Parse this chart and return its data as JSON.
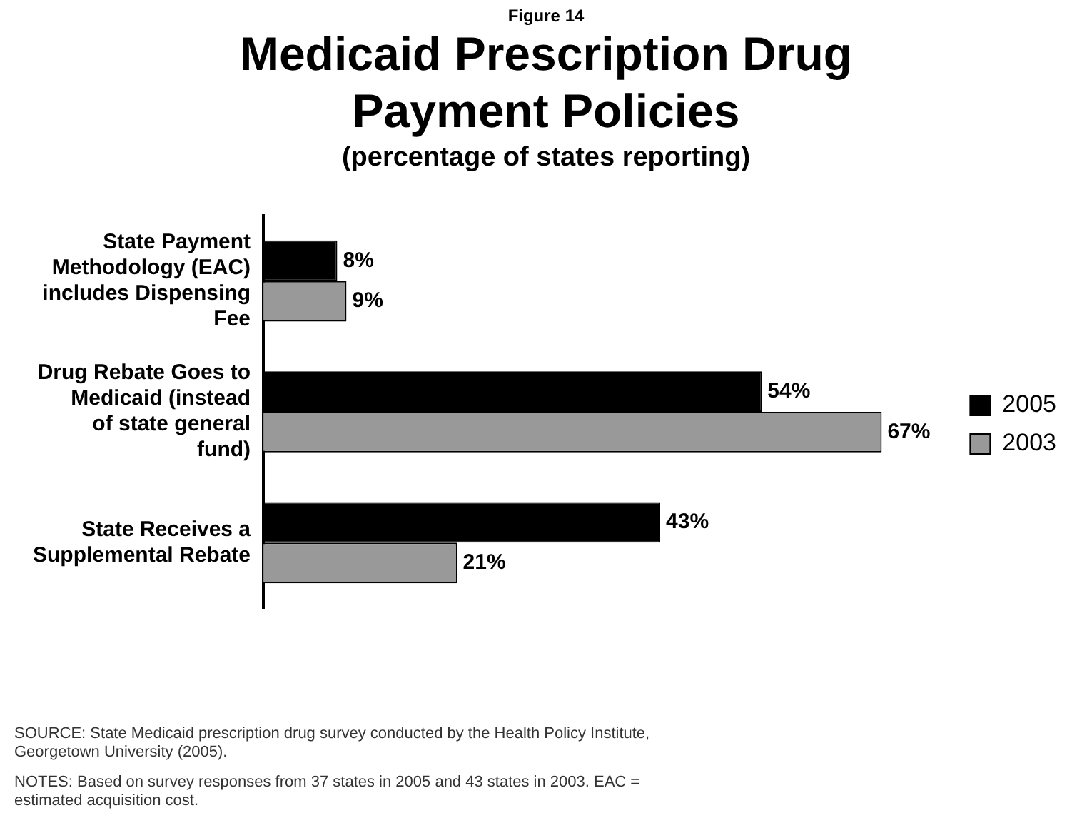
{
  "chart_data": {
    "type": "bar",
    "orientation": "horizontal",
    "title": "Medicaid Prescription Drug Payment Policies",
    "subtitle": "(percentage of states reporting)",
    "categories": [
      "State Payment Methodology (EAC) includes Dispensing Fee",
      "Drug Rebate Goes to Medicaid (instead of state general fund)",
      "State Receives a Supplemental Rebate"
    ],
    "series": [
      {
        "name": "2005",
        "color": "#000000",
        "values": [
          8,
          54,
          43
        ],
        "value_labels": [
          "8%",
          "54%",
          "43%"
        ]
      },
      {
        "name": "2003",
        "color": "#999999",
        "values": [
          9,
          67,
          21
        ],
        "value_labels": [
          "9%",
          "67%",
          "21%"
        ]
      }
    ],
    "legend": "right",
    "grid": false,
    "annotations": [
      "Figure 14",
      "SOURCE: State Medicaid prescription drug survey conducted by the Health Policy Institute, Georgetown University (2005).",
      "NOTES: Based on survey responses from 37 states in 2005 and 43 states in 2003. EAC = estimated acquisition cost."
    ]
  }
}
